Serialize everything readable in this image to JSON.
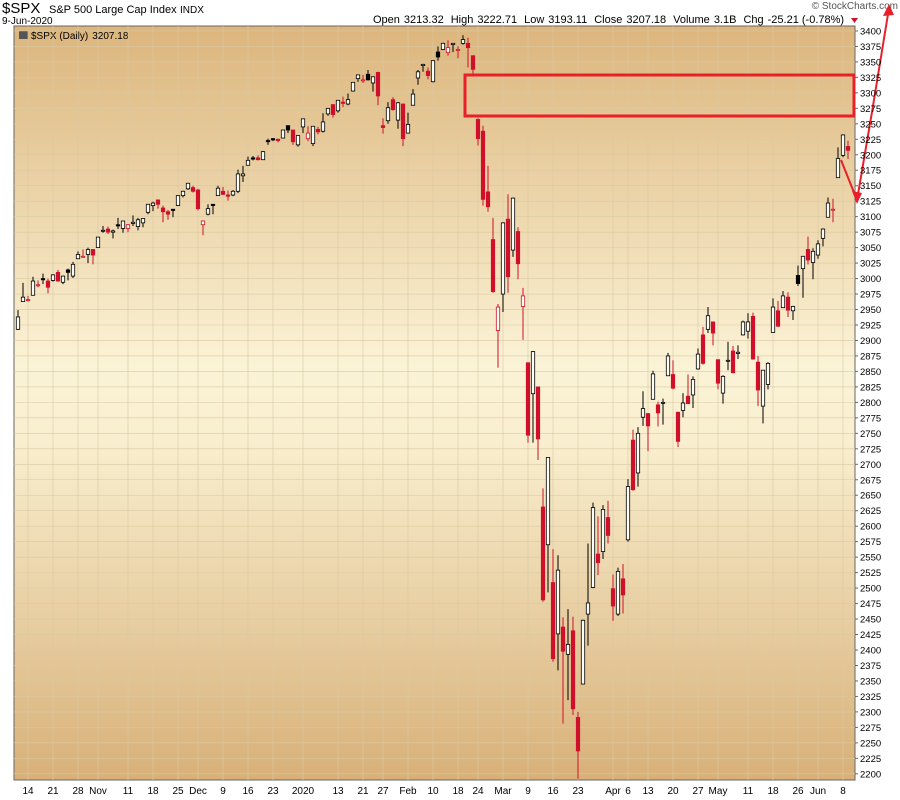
{
  "header": {
    "symbol": "$SPX",
    "name": "S&P 500 Large Cap Index",
    "exchange": "INDX",
    "date": "9-Jun-2020",
    "copyright": "© StockCharts.com",
    "stats": [
      {
        "label": "Open",
        "value": 3213.32
      },
      {
        "label": "High",
        "value": 3222.71
      },
      {
        "label": "Low",
        "value": 3193.11
      },
      {
        "label": "Close",
        "value": 3207.18
      },
      {
        "label": "Volume",
        "value": "3.1B"
      },
      {
        "label": "Chg",
        "value": "-25.21 (-0.78%)"
      }
    ]
  },
  "chart_data": {
    "type": "candlestick",
    "series_name": "$SPX (Daily)",
    "up_color": "#000000",
    "down_color": "#d0102a",
    "legend": "top-left",
    "grid": true,
    "ylim": [
      2190,
      3408
    ],
    "yticks": [
      2200,
      2225,
      2250,
      2275,
      2300,
      2325,
      2350,
      2375,
      2400,
      2425,
      2450,
      2475,
      2500,
      2525,
      2550,
      2575,
      2600,
      2625,
      2650,
      2675,
      2700,
      2725,
      2750,
      2775,
      2800,
      2825,
      2850,
      2875,
      2900,
      2925,
      2950,
      2975,
      3000,
      3025,
      3050,
      3075,
      3100,
      3125,
      3150,
      3175,
      3200,
      3225,
      3250,
      3275,
      3300,
      3325,
      3350,
      3375,
      3400
    ],
    "categories": [
      null,
      null,
      "14",
      null,
      null,
      null,
      null,
      "21",
      null,
      null,
      null,
      null,
      "28",
      null,
      null,
      null,
      "Nov",
      null,
      null,
      null,
      null,
      null,
      "11",
      null,
      null,
      null,
      null,
      "18",
      null,
      null,
      null,
      null,
      "25",
      null,
      null,
      null,
      "Dec",
      null,
      null,
      null,
      null,
      "9",
      null,
      null,
      null,
      null,
      "16",
      null,
      null,
      null,
      null,
      "23",
      null,
      null,
      null,
      null,
      null,
      "2020",
      null,
      null,
      null,
      null,
      null,
      null,
      "13",
      null,
      null,
      null,
      null,
      "21",
      null,
      null,
      null,
      "27",
      null,
      null,
      null,
      null,
      "Feb",
      null,
      null,
      null,
      null,
      "10",
      null,
      null,
      null,
      null,
      "18",
      null,
      null,
      null,
      "24",
      null,
      null,
      null,
      null,
      "Mar",
      null,
      null,
      null,
      null,
      "9",
      null,
      null,
      null,
      null,
      "16",
      null,
      null,
      null,
      null,
      "23",
      null,
      null,
      null,
      null,
      null,
      null,
      "Apr",
      null,
      null,
      "6",
      null,
      null,
      null,
      "13",
      null,
      null,
      null,
      null,
      "20",
      null,
      null,
      null,
      null,
      "27",
      null,
      null,
      null,
      "May",
      null,
      null,
      null,
      null,
      null,
      "11",
      null,
      null,
      null,
      null,
      "18",
      null,
      null,
      null,
      null,
      "26",
      null,
      null,
      null,
      "Jun",
      null,
      null,
      null,
      null,
      "8",
      null
    ],
    "open": [
      2918,
      2963,
      2966,
      2973,
      2989,
      3000,
      2996,
      2997,
      3010,
      2994,
      3014,
      3004,
      3032,
      3036,
      3039,
      3047,
      3050,
      3078,
      3080,
      3075,
      3087,
      3081,
      3081,
      3089,
      3084,
      3090,
      3107,
      3118,
      3127,
      3114,
      3108,
      3112,
      3118,
      3134,
      3145,
      3147,
      3143,
      3087,
      3104,
      3120,
      3134,
      3141,
      3135,
      3135,
      3141,
      3166,
      3183,
      3195,
      3195,
      3192,
      3223,
      3226,
      3225,
      3227,
      3247,
      3240,
      3216,
      3245,
      3226,
      3218,
      3241,
      3238,
      3266,
      3281,
      3271,
      3285,
      3282,
      3303,
      3323,
      3321,
      3330,
      3316,
      3333,
      3247,
      3255,
      3289,
      3256,
      3282,
      3235,
      3280,
      3324,
      3344,
      3335,
      3318,
      3366,
      3370,
      3365,
      3378,
      3369,
      3380,
      3380,
      3360,
      3257,
      3238,
      3140,
      3063,
      2916,
      2975,
      3096,
      3046,
      3076,
      2955,
      2864,
      2814,
      2825,
      2631,
      2570,
      2509,
      2426,
      2437,
      2393,
      2431,
      2291,
      2345,
      2458,
      2501,
      2555,
      2559,
      2614,
      2499,
      2458,
      2515,
      2578,
      2739,
      2686,
      2776,
      2782,
      2805,
      2796,
      2799,
      2843,
      2845,
      2784,
      2787,
      2810,
      2812,
      2854,
      2909,
      2918,
      2930,
      2869,
      2815,
      2868,
      2883,
      2879,
      2909,
      2915,
      2939,
      2865,
      2794,
      2829,
      2913,
      2948,
      2953,
      2970,
      2948,
      3005,
      3016,
      3047,
      3026,
      3038,
      3065,
      3099,
      3112,
      3163,
      3199,
      3213.32
    ],
    "high": [
      2949,
      2993,
      2972,
      3003,
      2997,
      3008,
      3000,
      3007,
      3014,
      3005,
      3016,
      3027,
      3044,
      3047,
      3050,
      3047,
      3067,
      3085,
      3084,
      3079,
      3098,
      3093,
      3088,
      3102,
      3098,
      3097,
      3120,
      3124,
      3128,
      3118,
      3111,
      3112,
      3133,
      3142,
      3154,
      3150,
      3145,
      3094,
      3120,
      3120,
      3150,
      3148,
      3142,
      3143,
      3176,
      3182,
      3197,
      3198,
      3199,
      3206,
      3226,
      3227,
      3226,
      3240,
      3247,
      3240,
      3231,
      3258,
      3246,
      3246,
      3245,
      3267,
      3275,
      3282,
      3288,
      3294,
      3299,
      3317,
      3329,
      3329,
      3337,
      3326,
      3334,
      3259,
      3285,
      3293,
      3285,
      3282,
      3268,
      3306,
      3337,
      3347,
      3341,
      3352,
      3375,
      3381,
      3385,
      3380,
      3375,
      3393,
      3389,
      3360,
      3259,
      3247,
      3182,
      3098,
      2959,
      3091,
      3136,
      3131,
      3083,
      2985,
      2864,
      2883,
      2825,
      2661,
      2711,
      2563,
      2553,
      2453,
      2466,
      2454,
      2300,
      2449,
      2572,
      2638,
      2616,
      2634,
      2641,
      2522,
      2533,
      2539,
      2676,
      2756,
      2760,
      2818,
      2782,
      2851,
      2801,
      2806,
      2880,
      2868,
      2785,
      2815,
      2845,
      2842,
      2887,
      2922,
      2954,
      2930,
      2869,
      2844,
      2898,
      2891,
      2892,
      2932,
      2944,
      2945,
      2875,
      2852,
      2865,
      2968,
      2964,
      2980,
      2978,
      2956,
      3021,
      3036,
      3068,
      3049,
      3062,
      3081,
      3131,
      3129,
      3212,
      3233,
      3222.71
    ],
    "low": [
      2917,
      2963,
      2963,
      2973,
      2986,
      2991,
      2976,
      2995,
      2995,
      2991,
      2997,
      3001,
      3032,
      3034,
      3025,
      3023,
      3050,
      3074,
      3072,
      3065,
      3080,
      3074,
      3075,
      3085,
      3078,
      3083,
      3104,
      3109,
      3113,
      3091,
      3095,
      3099,
      3117,
      3131,
      3143,
      3139,
      3110,
      3070,
      3102,
      3104,
      3134,
      3135,
      3126,
      3133,
      3138,
      3156,
      3183,
      3191,
      3191,
      3192,
      3216,
      3222,
      3220,
      3227,
      3235,
      3216,
      3213,
      3235,
      3222,
      3214,
      3233,
      3236,
      3263,
      3260,
      3268,
      3277,
      3280,
      3302,
      3318,
      3316,
      3320,
      3302,
      3280,
      3234,
      3250,
      3271,
      3242,
      3214,
      3235,
      3280,
      3313,
      3334,
      3322,
      3317,
      3352,
      3369,
      3360,
      3366,
      3356,
      3378,
      3341,
      3328,
      3215,
      3118,
      3108,
      2977,
      2856,
      2946,
      2977,
      3035,
      2999,
      2901,
      2735,
      2735,
      2707,
      2478,
      2493,
      2381,
      2367,
      2281,
      2319,
      2295,
      2192,
      2345,
      2407,
      2500,
      2521,
      2547,
      2572,
      2447,
      2455,
      2459,
      2575,
      2657,
      2664,
      2762,
      2721,
      2805,
      2761,
      2764,
      2843,
      2821,
      2728,
      2776,
      2798,
      2791,
      2853,
      2861,
      2912,
      2892,
      2821,
      2798,
      2852,
      2847,
      2870,
      2908,
      2903,
      2869,
      2794,
      2766,
      2821,
      2913,
      2922,
      2953,
      2938,
      2933,
      2988,
      2969,
      3023,
      2999,
      3032,
      3052,
      3099,
      3091,
      3163,
      3196,
      3193.11
    ],
    "close": [
      2938,
      2970,
      2966,
      2996,
      2990,
      2998,
      2986,
      3006,
      2996,
      3004,
      3010,
      3023,
      3039,
      3036,
      3047,
      3038,
      3067,
      3078,
      3075,
      3077,
      3085,
      3093,
      3087,
      3091,
      3095,
      3097,
      3120,
      3122,
      3120,
      3108,
      3104,
      3110,
      3134,
      3141,
      3154,
      3141,
      3113,
      3093,
      3113,
      3118,
      3146,
      3136,
      3133,
      3141,
      3169,
      3169,
      3191,
      3193,
      3192,
      3205,
      3221,
      3224,
      3223,
      3240,
      3240,
      3221,
      3231,
      3258,
      3235,
      3246,
      3237,
      3253,
      3275,
      3265,
      3288,
      3283,
      3289,
      3317,
      3329,
      3321,
      3321,
      3326,
      3295,
      3244,
      3276,
      3273,
      3284,
      3226,
      3249,
      3298,
      3334,
      3346,
      3328,
      3352,
      3358,
      3380,
      3373,
      3380,
      3370,
      3386,
      3373,
      3338,
      3226,
      3128,
      3116,
      2979,
      2954,
      3090,
      3003,
      3130,
      3024,
      2972,
      2747,
      2882,
      2741,
      2481,
      2711,
      2386,
      2529,
      2398,
      2409,
      2305,
      2237,
      2448,
      2476,
      2630,
      2541,
      2627,
      2585,
      2471,
      2527,
      2489,
      2664,
      2659,
      2750,
      2790,
      2762,
      2846,
      2783,
      2800,
      2875,
      2823,
      2737,
      2799,
      2798,
      2837,
      2878,
      2863,
      2940,
      2912,
      2831,
      2842,
      2868,
      2848,
      2881,
      2930,
      2930,
      2870,
      2820,
      2852,
      2863,
      2954,
      2923,
      2972,
      2949,
      2955,
      2992,
      3036,
      3030,
      3044,
      3056,
      3080,
      3122,
      3112,
      3194,
      3232,
      3207.18
    ]
  }
}
